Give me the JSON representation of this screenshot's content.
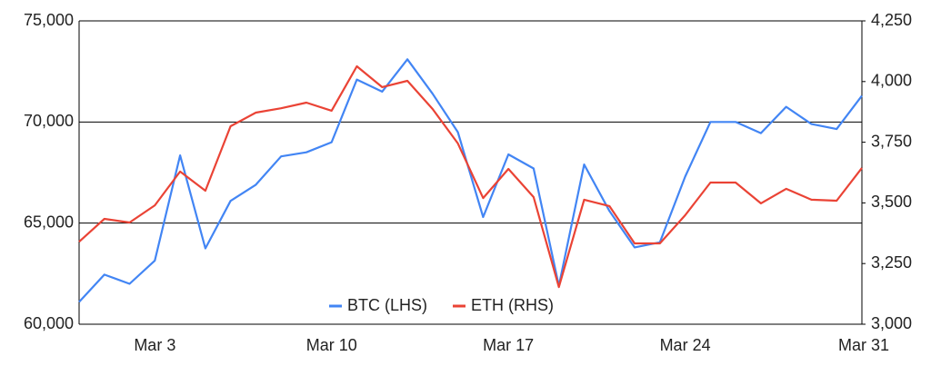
{
  "chart_data": {
    "type": "line",
    "categories": [
      null,
      null,
      null,
      "Mar 3",
      null,
      null,
      null,
      null,
      null,
      null,
      "Mar 10",
      null,
      null,
      null,
      null,
      null,
      null,
      "Mar 17",
      null,
      null,
      null,
      null,
      null,
      null,
      "Mar 24",
      null,
      null,
      null,
      null,
      null,
      null,
      "Mar 31"
    ],
    "series": [
      {
        "name": "BTC (LHS)",
        "color": "#4285f4",
        "values": [
          61100,
          62450,
          62000,
          63150,
          68350,
          63750,
          66100,
          66900,
          68300,
          68500,
          69000,
          72100,
          71500,
          73100,
          71400,
          69500,
          65300,
          68400,
          67700,
          61900,
          67900,
          65600,
          63800,
          64050,
          67300,
          70000,
          70000,
          69450,
          70750,
          69900,
          69650,
          71300
        ]
      },
      {
        "name": "ETH (RHS)",
        "color": "#ea4335",
        "axis": "y2",
        "values": [
          3340,
          3434,
          3419,
          3490,
          3629,
          3550,
          3816,
          3872,
          3890,
          3913,
          3880,
          4063,
          3977,
          4003,
          3887,
          3745,
          3520,
          3640,
          3524,
          3153,
          3513,
          3487,
          3333,
          3333,
          3449,
          3584,
          3584,
          3498,
          3558,
          3513,
          3509,
          3644
        ]
      }
    ],
    "ylim": [
      60000,
      75000
    ],
    "yticks": [
      {
        "value": 60000,
        "label": "60,000"
      },
      {
        "value": 65000,
        "label": "65,000"
      },
      {
        "value": 70000,
        "label": "70,000"
      },
      {
        "value": 75000,
        "label": "75,000"
      }
    ],
    "y2lim": [
      3000,
      4250
    ],
    "y2ticks": [
      {
        "value": 3000,
        "label": "3,000"
      },
      {
        "value": 3250,
        "label": "3,250"
      },
      {
        "value": 3500,
        "label": "3,500"
      },
      {
        "value": 3750,
        "label": "3,750"
      },
      {
        "value": 4000,
        "label": "4,000"
      },
      {
        "value": 4250,
        "label": "4,250"
      }
    ],
    "grid": true,
    "legend": "bottom"
  }
}
